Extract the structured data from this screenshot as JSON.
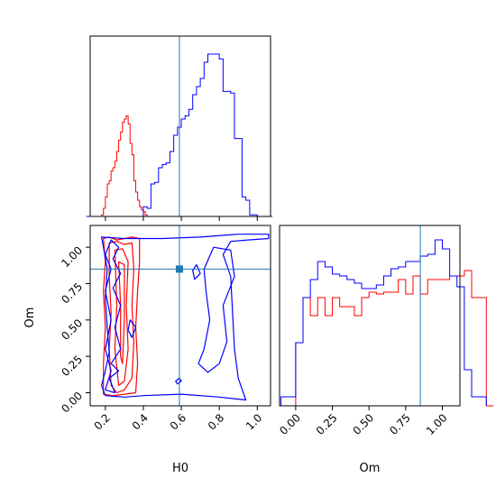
{
  "chart_data": {
    "type": "corner",
    "truth": {
      "H0": 0.59,
      "Om": 0.85,
      "color": "#1f77b4"
    },
    "colors": {
      "series_a": "#ff0000",
      "series_b": "#0000ff"
    },
    "panels": [
      {
        "id": "hist-H0",
        "type": "histogram",
        "xlim": [
          0.12,
          1.07
        ],
        "xticks": [
          0.2,
          0.4,
          0.6,
          0.8,
          1.0
        ],
        "xtick_labels_visible": false,
        "yticks_visible": false,
        "series": [
          {
            "color": "#ff0000",
            "x": [
              0.1,
              0.11,
              0.12,
              0.13,
              0.14,
              0.15,
              0.16,
              0.17,
              0.18,
              0.19,
              0.2,
              0.21,
              0.22,
              0.23,
              0.24,
              0.25,
              0.26,
              0.27,
              0.28,
              0.29,
              0.3,
              0.31,
              0.32,
              0.33,
              0.34,
              0.35,
              0.36,
              0.37,
              0.38,
              0.39,
              0.4,
              0.41,
              0.42,
              0.43,
              0.44,
              0.45,
              0.46,
              0.47,
              0.48,
              0.49,
              0.5
            ],
            "values": [
              0.0,
              0.0,
              0.0,
              0.0,
              0.0,
              0.0,
              0.0,
              0.0,
              0.01,
              0.05,
              0.12,
              0.2,
              0.22,
              0.28,
              0.3,
              0.34,
              0.4,
              0.47,
              0.52,
              0.58,
              0.6,
              0.62,
              0.57,
              0.45,
              0.38,
              0.22,
              0.15,
              0.1,
              0.06,
              0.04,
              0.03,
              0.01,
              0.0,
              0.0,
              0.0,
              0.0,
              0.0,
              0.0,
              0.0,
              0.0
            ]
          },
          {
            "color": "#0000ff",
            "x": [
              0.1,
              0.12,
              0.14,
              0.16,
              0.18,
              0.2,
              0.22,
              0.24,
              0.26,
              0.28,
              0.3,
              0.32,
              0.34,
              0.36,
              0.38,
              0.4,
              0.42,
              0.44,
              0.46,
              0.48,
              0.5,
              0.52,
              0.54,
              0.56,
              0.58,
              0.6,
              0.62,
              0.64,
              0.66,
              0.68,
              0.7,
              0.72,
              0.74,
              0.76,
              0.78,
              0.8,
              0.82,
              0.84,
              0.86,
              0.88,
              0.9,
              0.92,
              0.94,
              0.96,
              0.98,
              1.0,
              1.02,
              1.04,
              1.06,
              1.08
            ],
            "values": [
              0.0,
              0.0,
              0.0,
              0.0,
              0.0,
              0.0,
              0.0,
              0.0,
              0.0,
              0.0,
              0.0,
              0.0,
              0.0,
              0.0,
              0.0,
              0.06,
              0.05,
              0.2,
              0.21,
              0.3,
              0.32,
              0.33,
              0.4,
              0.5,
              0.55,
              0.6,
              0.62,
              0.66,
              0.75,
              0.8,
              0.85,
              0.95,
              1.0,
              1.0,
              1.0,
              0.97,
              0.77,
              0.77,
              0.76,
              0.48,
              0.48,
              0.12,
              0.1,
              0.01,
              0.01,
              0.0,
              0.0,
              0.0,
              0.0
            ]
          }
        ]
      },
      {
        "id": "contour-H0-Om",
        "type": "contour",
        "xlabel": "H0",
        "ylabel": "Om",
        "xlim": [
          0.12,
          1.07
        ],
        "ylim": [
          -0.09,
          1.15
        ],
        "xticks": [
          0.2,
          0.4,
          0.6,
          0.8,
          1.0
        ],
        "xtick_labels": [
          "0.2",
          "0.4",
          "0.6",
          "0.8",
          "1.0"
        ],
        "yticks": [
          0.0,
          0.25,
          0.5,
          0.75,
          1.0
        ],
        "ytick_labels": [
          "0.00",
          "0.25",
          "0.50",
          "0.75",
          "1.00"
        ]
      },
      {
        "id": "hist-Om",
        "type": "histogram",
        "xlabel": "Om",
        "xlim": [
          -0.11,
          1.12
        ],
        "xticks": [
          0.0,
          0.25,
          0.5,
          0.75,
          1.0
        ],
        "xtick_labels": [
          "0.00",
          "0.25",
          "0.50",
          "0.75",
          "1.00"
        ],
        "yticks_visible": false,
        "series": [
          {
            "color": "#ff0000",
            "bins_from": 0.0,
            "bin_width": 0.05,
            "values": [
              0.35,
              0.6,
              0.5,
              0.6,
              0.5,
              0.6,
              0.55,
              0.55,
              0.5,
              0.6,
              0.63,
              0.62,
              0.63,
              0.63,
              0.7,
              0.62,
              0.72,
              0.62,
              0.7,
              0.7,
              0.7,
              0.72,
              0.72,
              0.75,
              0.6,
              0.6,
              0.0
            ]
          },
          {
            "color": "#0000ff",
            "bins_from": -0.1,
            "bin_width": 0.05,
            "values": [
              0.05,
              0.05,
              0.35,
              0.6,
              0.7,
              0.8,
              0.77,
              0.73,
              0.72,
              0.7,
              0.68,
              0.65,
              0.65,
              0.67,
              0.72,
              0.76,
              0.77,
              0.8,
              0.8,
              0.83,
              0.84,
              0.92,
              0.87,
              0.72,
              0.66,
              0.2,
              0.05,
              0.05
            ]
          }
        ]
      }
    ]
  }
}
